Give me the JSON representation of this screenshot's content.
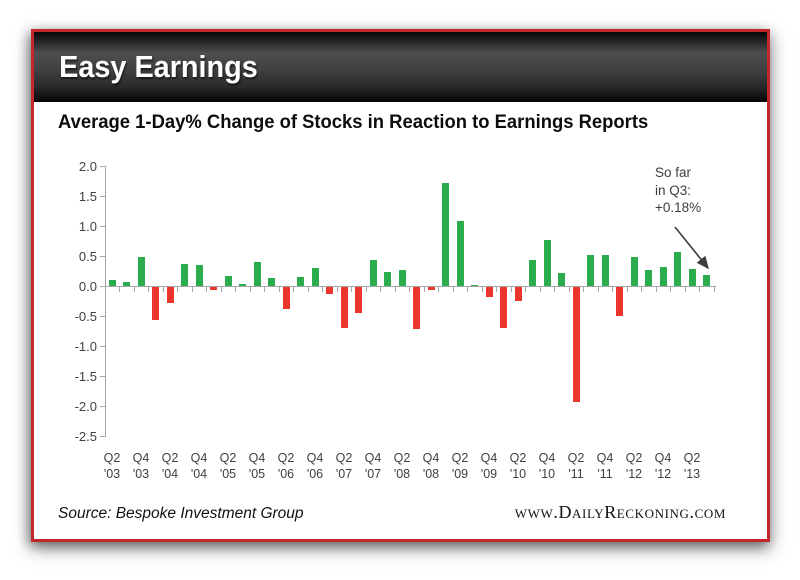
{
  "header": {
    "title": "Easy Earnings"
  },
  "footer": {
    "source": "Source: Bespoke Investment Group",
    "site": "www.DailyReckoning.com"
  },
  "colors": {
    "positive": "#2BAD4E",
    "negative": "#EC352D",
    "frame_border": "#C1272D",
    "axis": "#A6A6A6",
    "tick_label": "#404040"
  },
  "chart_data": {
    "type": "bar",
    "title": "Average 1-Day% Change of Stocks in Reaction to Earnings Reports",
    "xlabel": "",
    "ylabel": "",
    "ylim": [
      -2.5,
      2.0
    ],
    "ytick_step": 0.5,
    "grid": false,
    "legend": "none",
    "annotation": {
      "lines": [
        "So far",
        "in Q3:",
        "+0.18%"
      ],
      "points_to": "Q3 '13"
    },
    "bars": [
      {
        "q": "Q2 '03",
        "v": 0.1
      },
      {
        "q": "Q3 '03",
        "v": 0.07
      },
      {
        "q": "Q4 '03",
        "v": 0.48
      },
      {
        "q": "Q1 '04",
        "v": -0.55
      },
      {
        "q": "Q2 '04",
        "v": -0.26
      },
      {
        "q": "Q3 '04",
        "v": 0.37
      },
      {
        "q": "Q4 '04",
        "v": 0.35
      },
      {
        "q": "Q1 '05",
        "v": -0.05
      },
      {
        "q": "Q2 '05",
        "v": 0.17
      },
      {
        "q": "Q3 '05",
        "v": 0.04
      },
      {
        "q": "Q4 '05",
        "v": 0.4
      },
      {
        "q": "Q1 '06",
        "v": 0.13
      },
      {
        "q": "Q2 '06",
        "v": -0.36
      },
      {
        "q": "Q3 '06",
        "v": 0.15
      },
      {
        "q": "Q4 '06",
        "v": 0.3
      },
      {
        "q": "Q1 '07",
        "v": -0.12
      },
      {
        "q": "Q2 '07",
        "v": -0.68
      },
      {
        "q": "Q3 '07",
        "v": -0.44
      },
      {
        "q": "Q4 '07",
        "v": 0.43
      },
      {
        "q": "Q1 '08",
        "v": 0.23
      },
      {
        "q": "Q2 '08",
        "v": 0.26
      },
      {
        "q": "Q3 '08",
        "v": -0.7
      },
      {
        "q": "Q4 '08",
        "v": -0.05
      },
      {
        "q": "Q1 '09",
        "v": 1.72
      },
      {
        "q": "Q2 '09",
        "v": 1.09
      },
      {
        "q": "Q3 '09",
        "v": 0.01
      },
      {
        "q": "Q4 '09",
        "v": -0.16
      },
      {
        "q": "Q1 '10",
        "v": -0.68
      },
      {
        "q": "Q2 '10",
        "v": -0.24
      },
      {
        "q": "Q3 '10",
        "v": 0.43
      },
      {
        "q": "Q4 '10",
        "v": 0.76
      },
      {
        "q": "Q1 '11",
        "v": 0.21
      },
      {
        "q": "Q2 '11",
        "v": -1.92
      },
      {
        "q": "Q3 '11",
        "v": 0.52
      },
      {
        "q": "Q4 '11",
        "v": 0.52
      },
      {
        "q": "Q1 '12",
        "v": -0.48
      },
      {
        "q": "Q2 '12",
        "v": 0.48
      },
      {
        "q": "Q3 '12",
        "v": 0.27
      },
      {
        "q": "Q4 '12",
        "v": 0.31
      },
      {
        "q": "Q1 '13",
        "v": 0.57
      },
      {
        "q": "Q2 '13",
        "v": 0.28
      },
      {
        "q": "Q3 '13",
        "v": 0.18
      }
    ],
    "xtick_labels": [
      "Q2 '03",
      "Q4 '03",
      "Q2 '04",
      "Q4 '04",
      "Q2 '05",
      "Q4 '05",
      "Q2 '06",
      "Q4 '06",
      "Q2 '07",
      "Q4 '07",
      "Q2 '08",
      "Q4 '08",
      "Q2 '09",
      "Q4 '09",
      "Q2 '10",
      "Q4 '10",
      "Q2 '11",
      "Q4 '11",
      "Q2 '12",
      "Q4 '12",
      "Q2 '13"
    ]
  }
}
